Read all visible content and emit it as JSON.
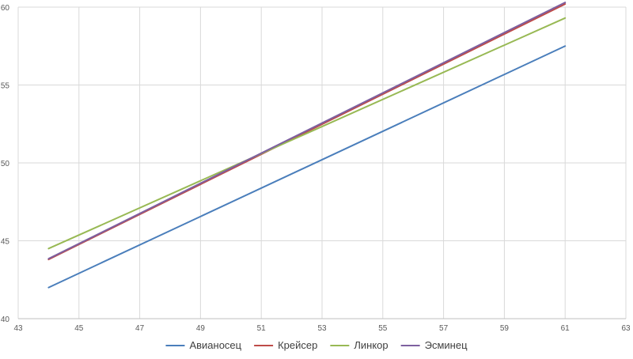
{
  "chart_data": {
    "type": "line",
    "title": "",
    "xlabel": "",
    "ylabel": "",
    "xlim": [
      43,
      63
    ],
    "ylim": [
      40,
      60
    ],
    "x_ticks": [
      43,
      45,
      47,
      49,
      51,
      53,
      55,
      57,
      59,
      61,
      63
    ],
    "y_ticks": [
      40,
      45,
      50,
      55,
      60
    ],
    "grid": true,
    "legend_position": "bottom",
    "series": [
      {
        "name": "Авианосец",
        "color": "#4a7ebb",
        "points": [
          [
            44,
            42.0
          ],
          [
            61,
            57.5
          ]
        ]
      },
      {
        "name": "Крейсер",
        "color": "#be4b48",
        "points": [
          [
            44,
            43.8
          ],
          [
            61,
            60.2
          ]
        ]
      },
      {
        "name": "Линкор",
        "color": "#98b954",
        "points": [
          [
            44,
            44.5
          ],
          [
            61,
            59.3
          ]
        ]
      },
      {
        "name": "Эсминец",
        "color": "#7d60a0",
        "points": [
          [
            44,
            43.85
          ],
          [
            61,
            60.3
          ]
        ]
      }
    ]
  }
}
